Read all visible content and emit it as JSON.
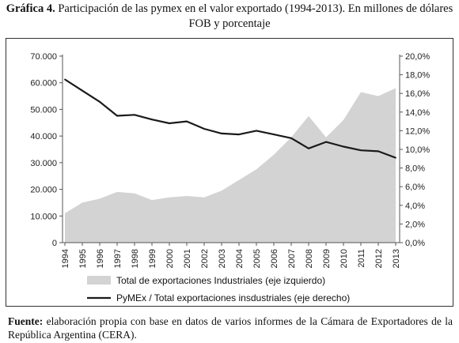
{
  "heading": {
    "label": "Gráfica 4.",
    "text": "Participación de las pymex en el valor exportado (1994-2013). En millones de dólares FOB y porcentaje"
  },
  "source": {
    "label": "Fuente:",
    "text": "elaboración propia con base en datos de varios informes de la Cámara de Exportadores de la República Argentina (CERA)."
  },
  "chart_data": {
    "type": "area",
    "categories": [
      "1994",
      "1995",
      "1996",
      "1997",
      "1998",
      "1999",
      "2000",
      "2001",
      "2002",
      "2003",
      "2004",
      "2005",
      "2006",
      "2007",
      "2008",
      "2009",
      "2010",
      "2011",
      "2012",
      "2013"
    ],
    "series": [
      {
        "name": "Total de exportaciones Industriales (eje izquierdo)",
        "type": "area",
        "axis": "left",
        "color": "#d3d3d3",
        "values": [
          11000,
          15000,
          16500,
          19000,
          18500,
          16000,
          17000,
          17500,
          17000,
          19500,
          23500,
          27500,
          33000,
          39500,
          47500,
          39500,
          46000,
          56500,
          55000,
          58000
        ]
      },
      {
        "name": "PyMEx / Total exportaciones insdustriales (eje derecho)",
        "type": "line",
        "axis": "right",
        "color": "#1a1a1a",
        "values": [
          17.5,
          16.3,
          15.1,
          13.6,
          13.7,
          13.2,
          12.8,
          13.0,
          12.2,
          11.7,
          11.6,
          12.0,
          11.6,
          11.2,
          10.1,
          10.8,
          10.3,
          9.9,
          9.8,
          9.1
        ]
      }
    ],
    "ylim_left": [
      0,
      70000
    ],
    "ylim_right": [
      0,
      20
    ],
    "yticks_left": [
      "0",
      "10.000",
      "20.000",
      "30.000",
      "40.000",
      "50.000",
      "60.000",
      "70.000"
    ],
    "yticks_right": [
      "0,0%",
      "2,0%",
      "4,0%",
      "6,0%",
      "8,0%",
      "10,0%",
      "12,0%",
      "14,0%",
      "16,0%",
      "18,0%",
      "20,0%"
    ],
    "grid": false,
    "legend_position": "bottom"
  }
}
